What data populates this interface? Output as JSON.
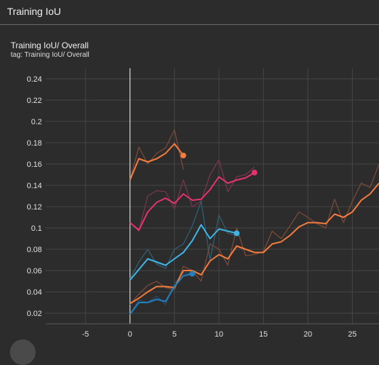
{
  "header": {
    "title": "Training IoU"
  },
  "card": {
    "title": "Training IoU/ Overall",
    "tag": "tag: Training IoU/ Overall"
  },
  "chart_data": {
    "type": "line",
    "title": "Training IoU/ Overall",
    "xlabel": "",
    "ylabel": "",
    "xlim": [
      -9.5,
      28
    ],
    "ylim": [
      0.01,
      0.25
    ],
    "x_ticks": [
      -5,
      0,
      5,
      10,
      15,
      20,
      25
    ],
    "y_ticks": [
      0.02,
      0.04,
      0.06,
      0.08,
      0.1,
      0.12,
      0.14,
      0.16,
      0.18,
      0.2,
      0.22,
      0.24
    ],
    "y_tick_labels": [
      "0.02",
      "0.04",
      "0.06",
      "0.08",
      "0.1",
      "0.12",
      "0.14",
      "0.16",
      "0.18",
      "0.2",
      "0.22",
      "0.24"
    ],
    "grid": true,
    "series": [
      {
        "color": "#f57c3f",
        "raw_color": "#7a4a36",
        "marker": true,
        "x": [
          0,
          1,
          2,
          3,
          4,
          5,
          6
        ],
        "raw": [
          0.145,
          0.176,
          0.16,
          0.17,
          0.175,
          0.192,
          0.155
        ],
        "smoothed": [
          0.145,
          0.165,
          0.162,
          0.165,
          0.17,
          0.179,
          0.168
        ]
      },
      {
        "color": "#e5336f",
        "raw_color": "#7a3550",
        "marker": true,
        "x": [
          0,
          1,
          2,
          3,
          4,
          5,
          6,
          7,
          8,
          9,
          10,
          11,
          12,
          13,
          14
        ],
        "raw": [
          0.105,
          0.097,
          0.13,
          0.135,
          0.134,
          0.118,
          0.145,
          0.12,
          0.125,
          0.15,
          0.164,
          0.134,
          0.148,
          0.15,
          0.157
        ],
        "smoothed": [
          0.105,
          0.098,
          0.115,
          0.124,
          0.128,
          0.123,
          0.132,
          0.126,
          0.127,
          0.136,
          0.148,
          0.142,
          0.145,
          0.147,
          0.152
        ]
      },
      {
        "color": "#3fb7e6",
        "raw_color": "#2f5f72",
        "marker": true,
        "x": [
          0,
          1,
          2,
          3,
          4,
          5,
          6,
          7,
          8,
          9,
          10,
          11,
          12
        ],
        "raw": [
          0.052,
          0.068,
          0.08,
          0.066,
          0.062,
          0.08,
          0.085,
          0.102,
          0.125,
          0.07,
          0.112,
          0.095,
          0.093
        ],
        "smoothed": [
          0.051,
          0.061,
          0.071,
          0.068,
          0.065,
          0.071,
          0.077,
          0.088,
          0.103,
          0.09,
          0.099,
          0.097,
          0.095
        ]
      },
      {
        "color": "#f57c3f",
        "raw_color": "#7a4a36",
        "marker": false,
        "x": [
          0,
          1,
          2,
          3,
          4,
          5,
          6,
          7,
          8,
          9,
          10,
          11,
          12,
          13,
          14,
          15,
          16,
          17,
          18,
          19,
          20,
          21,
          22,
          23,
          24,
          25,
          26,
          27,
          28
        ],
        "raw": [
          0.028,
          0.038,
          0.046,
          0.05,
          0.044,
          0.042,
          0.064,
          0.06,
          0.05,
          0.085,
          0.08,
          0.065,
          0.1,
          0.074,
          0.075,
          0.078,
          0.097,
          0.09,
          0.102,
          0.115,
          0.11,
          0.104,
          0.1,
          0.127,
          0.105,
          0.125,
          0.142,
          0.138,
          0.16
        ],
        "smoothed": [
          0.029,
          0.034,
          0.04,
          0.045,
          0.045,
          0.044,
          0.06,
          0.06,
          0.056,
          0.069,
          0.075,
          0.071,
          0.083,
          0.08,
          0.077,
          0.077,
          0.085,
          0.087,
          0.093,
          0.101,
          0.105,
          0.105,
          0.104,
          0.113,
          0.11,
          0.115,
          0.126,
          0.132,
          0.142
        ]
      },
      {
        "color": "#1f7fbf",
        "raw_color": "#2a4b66",
        "marker": true,
        "x": [
          0,
          1,
          2,
          3,
          4,
          5,
          6,
          7
        ],
        "raw": [
          0.019,
          0.032,
          0.03,
          0.036,
          0.028,
          0.048,
          0.058,
          0.057
        ],
        "smoothed": [
          0.019,
          0.03,
          0.03,
          0.033,
          0.031,
          0.045,
          0.055,
          0.057
        ]
      }
    ]
  }
}
